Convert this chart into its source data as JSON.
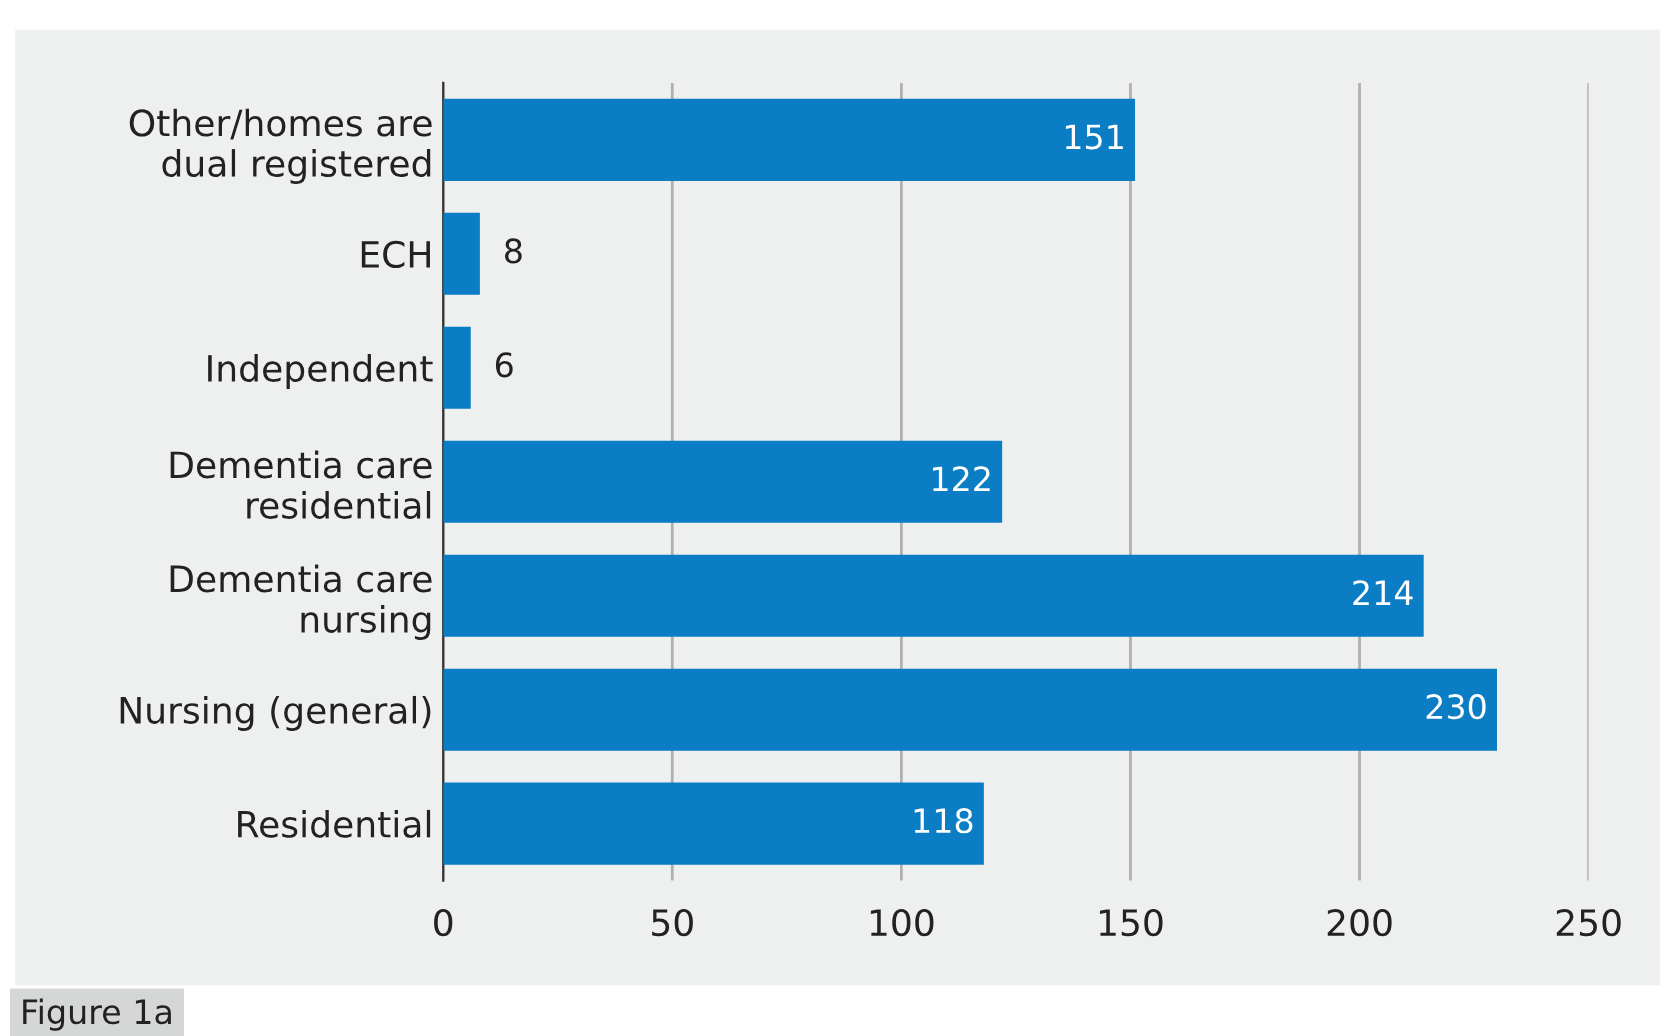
{
  "chart_data": {
    "type": "bar",
    "orientation": "horizontal",
    "categories": [
      "Other/homes are\ndual registered",
      "ECH",
      "Independent",
      "Dementia care\nresidential",
      "Dementia care\nnursing",
      "Nursing (general)",
      "Residential"
    ],
    "values": [
      151,
      8,
      6,
      122,
      214,
      230,
      118
    ],
    "color": "#0a7dc5",
    "xlim": [
      0,
      250
    ],
    "xticks": [
      0,
      50,
      100,
      150,
      200,
      250
    ],
    "grid": "x",
    "data_labels": true,
    "annotations": [
      "Figure 1a"
    ]
  }
}
